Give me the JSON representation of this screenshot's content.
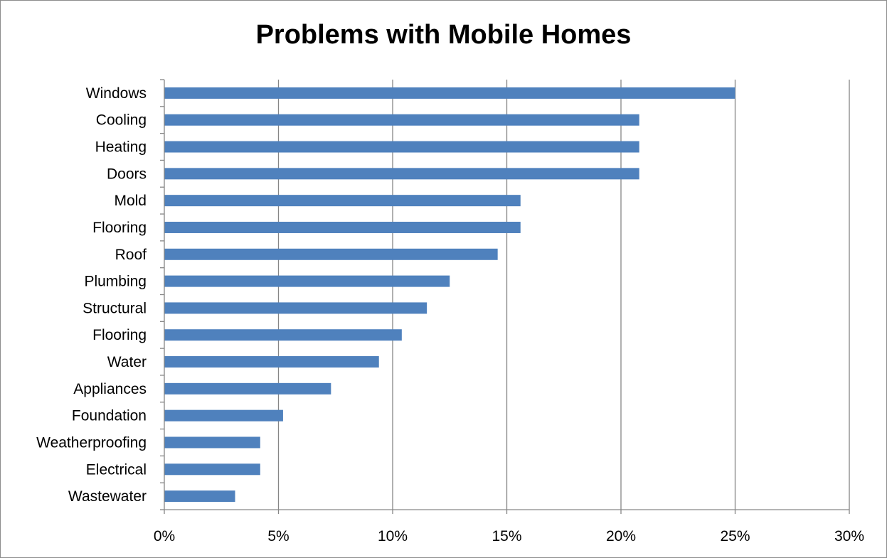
{
  "chart_data": {
    "type": "bar",
    "orientation": "horizontal",
    "title": "Problems with Mobile Homes",
    "xlabel": "",
    "ylabel": "",
    "xlim": [
      0,
      30
    ],
    "x_tick_values": [
      0,
      5,
      10,
      15,
      20,
      25,
      30
    ],
    "x_tick_labels": [
      "0%",
      "5%",
      "10%",
      "15%",
      "20%",
      "25%",
      "30%"
    ],
    "grid": "vertical",
    "legend": "none",
    "bar_color": "#4F81BD",
    "categories": [
      "Windows",
      "Cooling",
      "Heating",
      "Doors",
      "Mold",
      "Flooring",
      "Roof",
      "Plumbing",
      "Structural",
      "Flooring",
      "Water",
      "Appliances",
      "Foundation",
      "Weatherproofing",
      "Electrical",
      "Wastewater"
    ],
    "values": [
      25.0,
      20.8,
      20.8,
      20.8,
      15.6,
      15.6,
      14.6,
      12.5,
      11.5,
      10.4,
      9.4,
      7.3,
      5.2,
      4.2,
      4.2,
      3.1
    ]
  }
}
